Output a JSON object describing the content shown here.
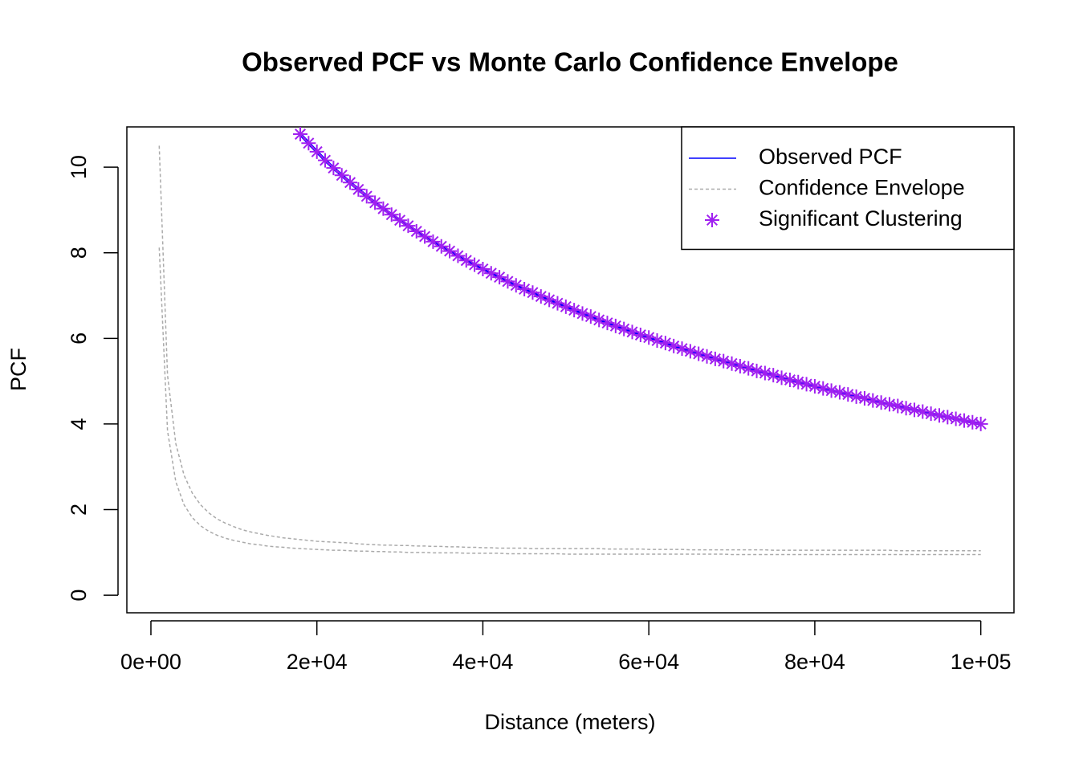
{
  "chart_data": {
    "type": "line",
    "title": "Observed PCF vs Monte Carlo Confidence Envelope",
    "xlabel": "Distance (meters)",
    "ylabel": "PCF",
    "xlim": [
      -2900,
      104000
    ],
    "ylim": [
      -0.41,
      10.94
    ],
    "xticks": [
      {
        "value": 0,
        "label": "0e+00"
      },
      {
        "value": 20000,
        "label": "2e+04"
      },
      {
        "value": 40000,
        "label": "4e+04"
      },
      {
        "value": 60000,
        "label": "6e+04"
      },
      {
        "value": 80000,
        "label": "8e+04"
      },
      {
        "value": 100000,
        "label": "1e+05"
      }
    ],
    "yticks": [
      0,
      2,
      4,
      6,
      8,
      10
    ],
    "grid": false,
    "legend": "top-right",
    "x": [
      1000,
      2000,
      3000,
      4000,
      5000,
      6000,
      7000,
      8000,
      9000,
      10000,
      11000,
      12000,
      13000,
      14000,
      15000,
      16000,
      17000,
      18000,
      19000,
      20000,
      21000,
      22000,
      23000,
      24000,
      25000,
      26000,
      27000,
      28000,
      29000,
      30000,
      31000,
      32000,
      33000,
      34000,
      35000,
      36000,
      37000,
      38000,
      39000,
      40000,
      41000,
      42000,
      43000,
      44000,
      45000,
      46000,
      47000,
      48000,
      49000,
      50000,
      51000,
      52000,
      53000,
      54000,
      55000,
      56000,
      57000,
      58000,
      59000,
      60000,
      61000,
      62000,
      63000,
      64000,
      65000,
      66000,
      67000,
      68000,
      69000,
      70000,
      71000,
      72000,
      73000,
      74000,
      75000,
      76000,
      77000,
      78000,
      79000,
      80000,
      81000,
      82000,
      83000,
      84000,
      85000,
      86000,
      87000,
      88000,
      89000,
      90000,
      91000,
      92000,
      93000,
      94000,
      95000,
      96000,
      97000,
      98000,
      99000,
      100000
    ],
    "series": [
      {
        "name": "Observed PCF",
        "color": "#0000ff",
        "style": "line",
        "values": [
          null,
          null,
          null,
          null,
          null,
          null,
          null,
          null,
          null,
          null,
          null,
          null,
          null,
          null,
          null,
          null,
          null,
          10.77,
          10.56,
          10.36,
          10.16,
          9.98,
          9.81,
          9.64,
          9.48,
          9.32,
          9.17,
          9.03,
          8.89,
          8.76,
          8.63,
          8.5,
          8.38,
          8.26,
          8.15,
          8.04,
          7.93,
          7.82,
          7.72,
          7.62,
          7.52,
          7.43,
          7.33,
          7.24,
          7.15,
          7.07,
          6.98,
          6.9,
          6.82,
          6.74,
          6.66,
          6.58,
          6.51,
          6.43,
          6.36,
          6.29,
          6.22,
          6.15,
          6.08,
          6.02,
          5.95,
          5.89,
          5.82,
          5.76,
          5.7,
          5.64,
          5.58,
          5.52,
          5.47,
          5.41,
          5.35,
          5.3,
          5.24,
          5.19,
          5.14,
          5.08,
          5.03,
          4.98,
          4.93,
          4.88,
          4.83,
          4.78,
          4.74,
          4.69,
          4.64,
          4.6,
          4.55,
          4.5,
          4.46,
          4.42,
          4.37,
          4.33,
          4.29,
          4.24,
          4.2,
          4.16,
          4.12,
          4.08,
          4.04,
          4.0
        ]
      },
      {
        "name": "Confidence Envelope",
        "color": "#aaaaaa",
        "style": "dashed",
        "values": [
          10.5,
          5.14,
          3.54,
          2.8,
          2.38,
          2.11,
          1.92,
          1.78,
          1.68,
          1.6,
          1.53,
          1.48,
          1.44,
          1.4,
          1.37,
          1.34,
          1.32,
          1.3,
          1.28,
          1.26,
          1.25,
          1.24,
          1.23,
          1.22,
          1.2,
          1.19,
          1.18,
          1.17,
          1.17,
          1.16,
          1.16,
          1.15,
          1.15,
          1.14,
          1.14,
          1.13,
          1.13,
          1.12,
          1.12,
          1.11,
          1.11,
          1.1,
          1.1,
          1.1,
          1.1,
          1.09,
          1.09,
          1.09,
          1.09,
          1.09,
          1.09,
          1.09,
          1.09,
          1.09,
          1.08,
          1.08,
          1.08,
          1.08,
          1.08,
          1.07,
          1.07,
          1.07,
          1.07,
          1.07,
          1.06,
          1.06,
          1.06,
          1.06,
          1.06,
          1.06,
          1.06,
          1.06,
          1.06,
          1.06,
          1.05,
          1.05,
          1.05,
          1.05,
          1.05,
          1.05,
          1.05,
          1.05,
          1.05,
          1.05,
          1.05,
          1.05,
          1.05,
          1.05,
          1.05,
          1.04,
          1.04,
          1.04,
          1.04,
          1.04,
          1.04,
          1.04,
          1.04,
          1.04,
          1.04,
          1.04
        ]
      },
      {
        "color": "#aaaaaa",
        "style": "dashed",
        "values": [
          8.12,
          3.84,
          2.65,
          2.11,
          1.81,
          1.62,
          1.49,
          1.4,
          1.33,
          1.28,
          1.24,
          1.2,
          1.18,
          1.15,
          1.13,
          1.12,
          1.1,
          1.09,
          1.08,
          1.07,
          1.06,
          1.05,
          1.05,
          1.04,
          1.03,
          1.03,
          1.02,
          1.02,
          1.01,
          1.01,
          1.0,
          1.0,
          1.0,
          0.99,
          0.99,
          0.99,
          0.99,
          0.98,
          0.98,
          0.98,
          0.98,
          0.98,
          0.97,
          0.97,
          0.97,
          0.97,
          0.97,
          0.97,
          0.97,
          0.96,
          0.96,
          0.96,
          0.96,
          0.96,
          0.96,
          0.96,
          0.96,
          0.96,
          0.96,
          0.96,
          0.96,
          0.96,
          0.96,
          0.96,
          0.96,
          0.96,
          0.96,
          0.96,
          0.96,
          0.95,
          0.95,
          0.95,
          0.95,
          0.95,
          0.95,
          0.95,
          0.95,
          0.95,
          0.95,
          0.95,
          0.95,
          0.95,
          0.95,
          0.95,
          0.95,
          0.95,
          0.95,
          0.95,
          0.95,
          0.95,
          0.95,
          0.95,
          0.95,
          0.95,
          0.95,
          0.95,
          0.95,
          0.95,
          0.95,
          0.95
        ]
      },
      {
        "name": "Significant Clustering",
        "color": "#a020f0",
        "style": "asterisk",
        "values": [
          null,
          null,
          null,
          null,
          null,
          null,
          null,
          null,
          null,
          null,
          null,
          null,
          null,
          null,
          null,
          null,
          null,
          10.77,
          10.56,
          10.36,
          10.16,
          9.98,
          9.81,
          9.64,
          9.48,
          9.32,
          9.17,
          9.03,
          8.89,
          8.76,
          8.63,
          8.5,
          8.38,
          8.26,
          8.15,
          8.04,
          7.93,
          7.82,
          7.72,
          7.62,
          7.52,
          7.43,
          7.33,
          7.24,
          7.15,
          7.07,
          6.98,
          6.9,
          6.82,
          6.74,
          6.66,
          6.58,
          6.51,
          6.43,
          6.36,
          6.29,
          6.22,
          6.15,
          6.08,
          6.02,
          5.95,
          5.89,
          5.82,
          5.76,
          5.7,
          5.64,
          5.58,
          5.52,
          5.47,
          5.41,
          5.35,
          5.3,
          5.24,
          5.19,
          5.14,
          5.08,
          5.03,
          4.98,
          4.93,
          4.88,
          4.83,
          4.78,
          4.74,
          4.69,
          4.64,
          4.6,
          4.55,
          4.5,
          4.46,
          4.42,
          4.37,
          4.33,
          4.29,
          4.24,
          4.2,
          4.16,
          4.12,
          4.08,
          4.04,
          4.0
        ]
      }
    ]
  }
}
